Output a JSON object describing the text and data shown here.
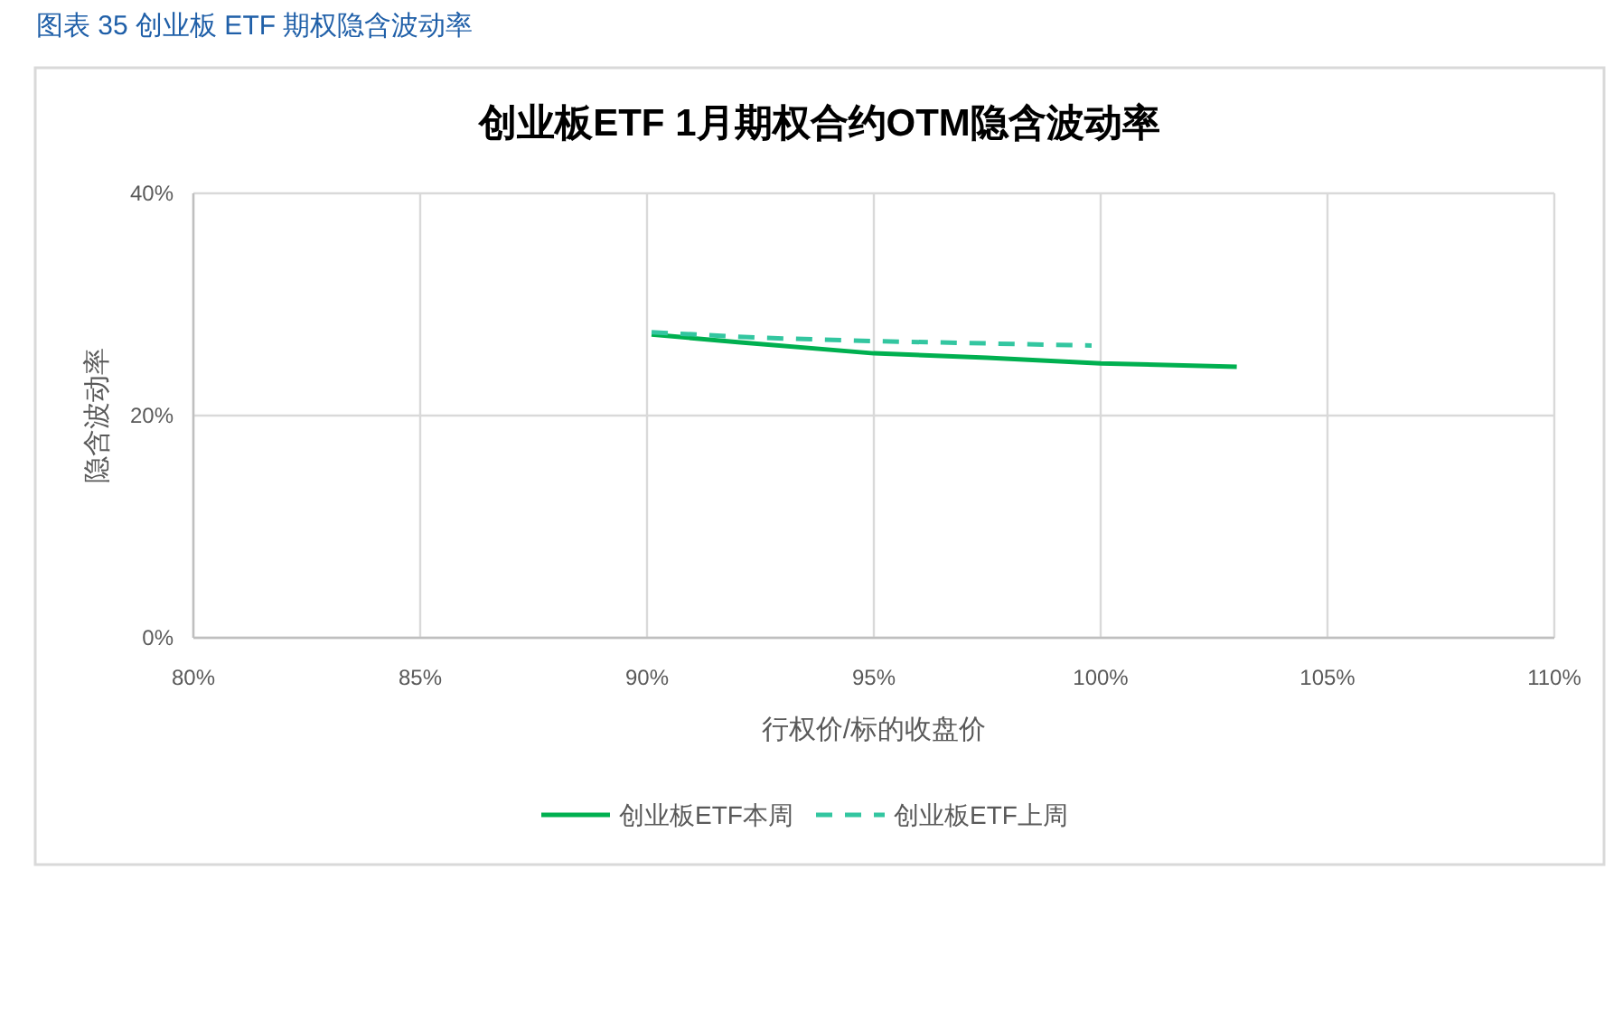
{
  "chart_data": {
    "type": "line",
    "title": "创业板ETF 1月期权合约OTM隐含波动率",
    "annotations": [
      "图表 35 创业板 ETF 期权隐含波动率"
    ],
    "xlabel": "行权价/标的收盘价",
    "ylabel": "隐含波动率",
    "xlim": [
      80,
      110
    ],
    "xticks": [
      {
        "value": 80,
        "label": "80%"
      },
      {
        "value": 85,
        "label": "85%"
      },
      {
        "value": 90,
        "label": "90%"
      },
      {
        "value": 95,
        "label": "95%"
      },
      {
        "value": 100,
        "label": "100%"
      },
      {
        "value": 105,
        "label": "105%"
      },
      {
        "value": 110,
        "label": "110%"
      }
    ],
    "ylim": [
      0,
      40
    ],
    "yticks": [
      {
        "value": 0,
        "label": "0%"
      },
      {
        "value": 20,
        "label": "20%"
      },
      {
        "value": 40,
        "label": "40%"
      }
    ],
    "series": [
      {
        "name": "创业板ETF本周",
        "color": "#00b050",
        "line_style": "solid",
        "x": [
          90.1,
          92,
          95,
          97.5,
          100,
          103
        ],
        "values": [
          27.3,
          26.6,
          25.6,
          25.2,
          24.7,
          24.4
        ]
      },
      {
        "name": "创业板ETF上周",
        "color": "#33c6a0",
        "line_style": "dashed",
        "x": [
          90.1,
          92.5,
          95,
          99.8
        ],
        "values": [
          27.5,
          27.0,
          26.7,
          26.3
        ]
      }
    ],
    "grid": true,
    "legend": "bottom"
  }
}
